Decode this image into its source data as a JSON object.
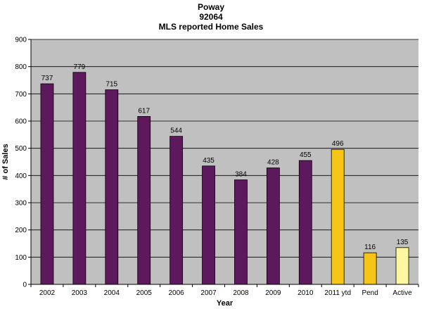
{
  "chart_data": {
    "type": "bar",
    "title_lines": [
      "Poway",
      "92064",
      "MLS reported Home Sales"
    ],
    "xlabel": "Year",
    "ylabel": "# of Sales",
    "ylim": [
      0,
      900
    ],
    "yticks": [
      0,
      100,
      200,
      300,
      400,
      500,
      600,
      700,
      800,
      900
    ],
    "grid": true,
    "categories": [
      "2002",
      "2003",
      "2004",
      "2005",
      "2006",
      "2007",
      "2008",
      "2009",
      "2010",
      "2011 ytd",
      "Pend",
      "Active"
    ],
    "values": [
      737,
      779,
      715,
      617,
      544,
      435,
      384,
      428,
      455,
      496,
      116,
      135
    ],
    "bar_colors": [
      "#5c1a5c",
      "#5c1a5c",
      "#5c1a5c",
      "#5c1a5c",
      "#5c1a5c",
      "#5c1a5c",
      "#5c1a5c",
      "#5c1a5c",
      "#5c1a5c",
      "#f5c518",
      "#f5c518",
      "#fff6a0"
    ],
    "data_labels": [
      "737",
      "779",
      "715",
      "617",
      "544",
      "435",
      "384",
      "428",
      "455",
      "496",
      "116",
      "135"
    ],
    "plot_background": "#c0c0c0",
    "gridline_color": "#000000"
  }
}
